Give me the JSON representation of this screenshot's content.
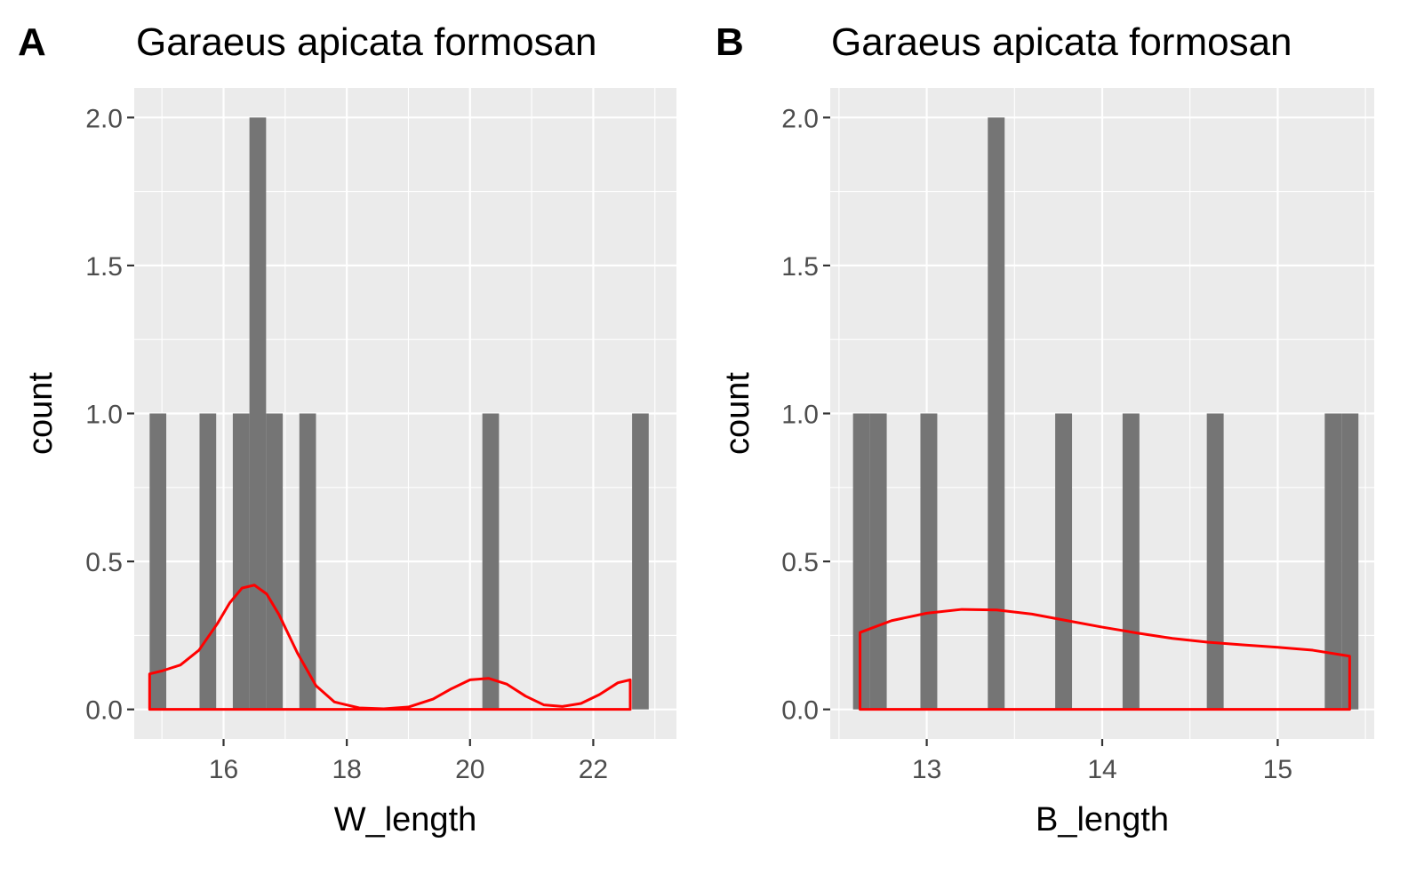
{
  "chart_data": [
    {
      "type": "bar",
      "panel_tag": "A",
      "title": "Garaeus apicata formosan",
      "xlabel": "W_length",
      "ylabel": "count",
      "xlim": [
        14.55,
        23.35
      ],
      "ylim": [
        -0.1,
        2.1
      ],
      "x_ticks": [
        16,
        18,
        20,
        22
      ],
      "x_ticklabels": [
        "16",
        "18",
        "20",
        "22"
      ],
      "y_ticks": [
        0,
        0.5,
        1,
        1.5,
        2
      ],
      "y_ticklabels": [
        "0.0",
        "0.5",
        "1.0",
        "1.5",
        "2.0"
      ],
      "grid": true,
      "bar_color": "#757575",
      "density_color": "#ff0000",
      "background": "#ebebeb",
      "histogram": {
        "bin_width": 0.27,
        "bins": [
          {
            "xmin": 14.8,
            "xmax": 15.07,
            "count": 1
          },
          {
            "xmin": 15.61,
            "xmax": 15.88,
            "count": 1
          },
          {
            "xmin": 16.15,
            "xmax": 16.42,
            "count": 1
          },
          {
            "xmin": 16.42,
            "xmax": 16.69,
            "count": 2
          },
          {
            "xmin": 16.69,
            "xmax": 16.96,
            "count": 1
          },
          {
            "xmin": 17.23,
            "xmax": 17.5,
            "count": 1
          },
          {
            "xmin": 20.2,
            "xmax": 20.47,
            "count": 1
          },
          {
            "xmin": 22.63,
            "xmax": 22.9,
            "count": 1
          }
        ]
      },
      "density": {
        "x": [
          14.8,
          15.0,
          15.3,
          15.6,
          15.9,
          16.1,
          16.3,
          16.5,
          16.7,
          16.9,
          17.2,
          17.5,
          17.8,
          18.2,
          18.6,
          19.0,
          19.4,
          19.7,
          20.0,
          20.3,
          20.6,
          20.9,
          21.2,
          21.5,
          21.8,
          22.1,
          22.4,
          22.6
        ],
        "y": [
          0.12,
          0.13,
          0.15,
          0.2,
          0.29,
          0.36,
          0.41,
          0.42,
          0.39,
          0.32,
          0.19,
          0.08,
          0.025,
          0.005,
          0.002,
          0.008,
          0.035,
          0.07,
          0.1,
          0.105,
          0.085,
          0.045,
          0.015,
          0.01,
          0.02,
          0.05,
          0.09,
          0.1
        ]
      }
    },
    {
      "type": "bar",
      "panel_tag": "B",
      "title": "Garaeus apicata formosan",
      "xlabel": "B_length",
      "ylabel": "count",
      "xlim": [
        12.45,
        15.55
      ],
      "ylim": [
        -0.1,
        2.1
      ],
      "x_ticks": [
        13,
        14,
        15
      ],
      "x_ticklabels": [
        "13",
        "14",
        "15"
      ],
      "y_ticks": [
        0,
        0.5,
        1,
        1.5,
        2
      ],
      "y_ticklabels": [
        "0.0",
        "0.5",
        "1.0",
        "1.5",
        "2.0"
      ],
      "grid": true,
      "bar_color": "#757575",
      "density_color": "#ff0000",
      "background": "#ebebeb",
      "histogram": {
        "bin_width": 0.096,
        "bins": [
          {
            "xmin": 12.58,
            "xmax": 12.676,
            "count": 1
          },
          {
            "xmin": 12.676,
            "xmax": 12.772,
            "count": 1
          },
          {
            "xmin": 12.964,
            "xmax": 13.06,
            "count": 1
          },
          {
            "xmin": 13.348,
            "xmax": 13.444,
            "count": 2
          },
          {
            "xmin": 13.732,
            "xmax": 13.828,
            "count": 1
          },
          {
            "xmin": 14.116,
            "xmax": 14.212,
            "count": 1
          },
          {
            "xmin": 14.596,
            "xmax": 14.692,
            "count": 1
          },
          {
            "xmin": 15.268,
            "xmax": 15.364,
            "count": 1
          },
          {
            "xmin": 15.364,
            "xmax": 15.46,
            "count": 1
          }
        ]
      },
      "density": {
        "x": [
          12.62,
          12.8,
          13.0,
          13.2,
          13.4,
          13.6,
          13.8,
          14.0,
          14.2,
          14.4,
          14.6,
          14.8,
          15.0,
          15.2,
          15.41
        ],
        "y": [
          0.26,
          0.3,
          0.325,
          0.338,
          0.336,
          0.322,
          0.3,
          0.278,
          0.258,
          0.24,
          0.227,
          0.218,
          0.21,
          0.2,
          0.18
        ]
      }
    }
  ]
}
